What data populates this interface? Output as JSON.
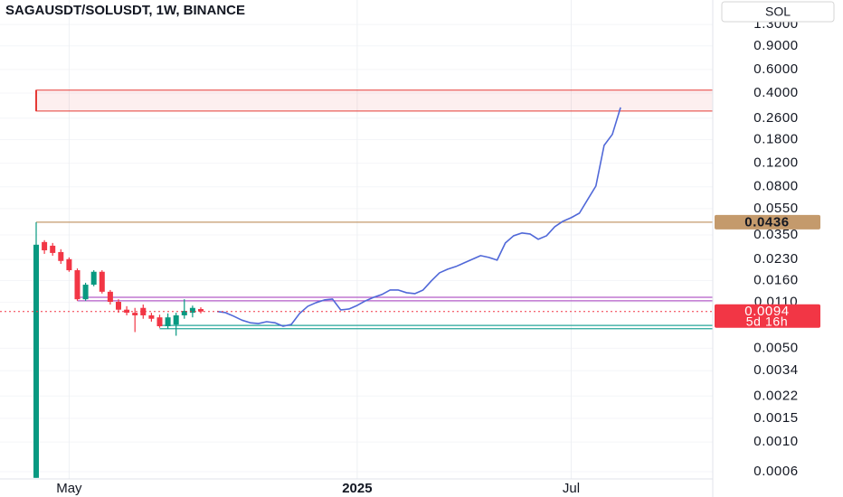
{
  "chart_data": {
    "type": "candlestick",
    "title": "SAGAUSDT/SOLUSDT, 1W, BINANCE",
    "currency": "SOL",
    "log_scale": true,
    "grid": true,
    "up_color": "#089981",
    "down_color": "#f23645",
    "categories": [
      null,
      null,
      null,
      null,
      "May",
      null,
      null,
      null,
      null,
      null,
      null,
      null,
      null,
      null,
      null,
      null,
      null,
      null,
      null,
      null,
      null,
      null,
      null,
      null,
      null,
      null,
      null,
      null,
      null,
      null,
      null,
      null,
      null,
      null,
      null,
      null,
      null,
      null,
      null,
      "2025",
      null,
      null,
      null,
      null,
      null,
      null,
      null,
      null,
      null,
      null,
      null,
      null,
      null,
      null,
      null,
      null,
      null,
      null,
      null,
      null,
      null,
      null,
      null,
      null,
      null,
      "Jul",
      null,
      null,
      null,
      null,
      null,
      null
    ],
    "ohlc": {
      "open": [
        0.00054,
        0.031,
        0.0291,
        0.0261,
        0.0231,
        0.0191,
        0.0116,
        0.0149,
        0.0186,
        0.0132,
        0.0111,
        0.0097,
        0.0092,
        0.01,
        0.0088,
        0.0085,
        0.0073,
        0.0075,
        0.0088,
        0.0092,
        0.0098,
        null,
        null,
        null,
        null,
        null,
        null,
        null,
        null,
        null,
        null,
        null,
        null,
        null,
        null,
        null,
        null,
        null,
        null,
        null,
        null,
        null,
        null,
        null,
        null,
        null,
        null,
        null,
        null,
        null,
        null,
        null,
        null,
        null,
        null,
        null,
        null,
        null,
        null,
        null,
        null,
        null,
        null,
        null,
        null,
        null,
        null,
        null,
        null,
        null,
        null,
        null
      ],
      "high": [
        0.0436,
        0.032,
        0.0305,
        0.0274,
        0.0238,
        0.0197,
        0.0154,
        0.0191,
        0.0191,
        0.0136,
        0.0116,
        0.0103,
        0.01,
        0.0106,
        0.0092,
        0.0089,
        0.0091,
        0.0092,
        0.0116,
        0.0104,
        0.0101,
        null,
        null,
        null,
        null,
        null,
        null,
        null,
        null,
        null,
        null,
        null,
        null,
        null,
        null,
        null,
        null,
        null,
        null,
        null,
        null,
        null,
        null,
        null,
        null,
        null,
        null,
        null,
        null,
        null,
        null,
        null,
        null,
        null,
        null,
        null,
        null,
        null,
        null,
        null,
        null,
        null,
        null,
        null,
        null,
        null,
        null,
        null,
        null,
        null,
        null,
        null
      ],
      "low": [
        0.00054,
        0.0253,
        0.0245,
        0.0213,
        0.0186,
        0.0113,
        0.0113,
        0.0145,
        0.0128,
        0.0106,
        0.0092,
        0.0088,
        0.0066,
        0.0083,
        0.0079,
        0.0071,
        0.007,
        0.0062,
        0.0083,
        0.0085,
        0.0091,
        null,
        null,
        null,
        null,
        null,
        null,
        null,
        null,
        null,
        null,
        null,
        null,
        null,
        null,
        null,
        null,
        null,
        null,
        null,
        null,
        null,
        null,
        null,
        null,
        null,
        null,
        null,
        null,
        null,
        null,
        null,
        null,
        null,
        null,
        null,
        null,
        null,
        null,
        null,
        null,
        null,
        null,
        null,
        null,
        null,
        null,
        null,
        null,
        null,
        null,
        null
      ],
      "close": [
        0.0296,
        0.0269,
        0.0257,
        0.0224,
        0.0191,
        0.0116,
        0.0149,
        0.0186,
        0.0132,
        0.0111,
        0.0097,
        0.0092,
        0.0088,
        0.0088,
        0.0083,
        0.0073,
        0.0085,
        0.0088,
        0.0095,
        0.01,
        0.0094,
        null,
        null,
        null,
        null,
        null,
        null,
        null,
        null,
        null,
        null,
        null,
        null,
        null,
        null,
        null,
        null,
        null,
        null,
        null,
        null,
        null,
        null,
        null,
        null,
        null,
        null,
        null,
        null,
        null,
        null,
        null,
        null,
        null,
        null,
        null,
        null,
        null,
        null,
        null,
        null,
        null,
        null,
        null,
        null,
        null,
        null,
        null,
        null,
        null,
        null,
        null
      ]
    },
    "projection": {
      "color": "#5068d8",
      "values": [
        null,
        null,
        null,
        null,
        null,
        null,
        null,
        null,
        null,
        null,
        null,
        null,
        null,
        null,
        null,
        null,
        null,
        null,
        null,
        null,
        null,
        null,
        0.0094,
        0.00922,
        0.00867,
        0.0081,
        0.00775,
        0.00764,
        0.00789,
        0.00775,
        0.0073,
        0.00753,
        0.00908,
        0.01028,
        0.01094,
        0.01146,
        0.01164,
        0.00966,
        0.00981,
        0.01044,
        0.01128,
        0.012,
        0.01258,
        0.01359,
        0.01359,
        0.01298,
        0.01277,
        0.01359,
        0.01588,
        0.01826,
        0.01944,
        0.02036,
        0.02168,
        0.02306,
        0.02454,
        0.0238,
        0.02271,
        0.0305,
        0.0345,
        0.0362,
        0.0356,
        0.0325,
        0.0345,
        0.0403,
        0.0443,
        0.0471,
        0.0509,
        0.0643,
        0.0811,
        0.163,
        0.197,
        0.313
      ]
    },
    "zones": [
      {
        "top": 0.421,
        "bottom": 0.294,
        "from": 0,
        "color": "#e53935"
      }
    ],
    "levels": [
      {
        "value": 0.0436,
        "from": 0,
        "color": "#c49a6c",
        "axis_label": true
      },
      {
        "value": 0.012,
        "from": 5,
        "color": "#b35cc7"
      },
      {
        "value": 0.0113,
        "from": 5,
        "color": "#b35cc7"
      },
      {
        "value": 0.0074,
        "from": 15,
        "color": "#26a69a"
      },
      {
        "value": 0.007,
        "from": 15,
        "color": "#26a69a"
      }
    ],
    "last_price_color": "#f23645",
    "countdown": "5d 16h",
    "ylim": [
      0.00053,
      1.98
    ],
    "yticks": [
      {
        "value": 1.3,
        "label": "1.3000"
      },
      {
        "value": 0.9,
        "label": "0.9000"
      },
      {
        "value": 0.6,
        "label": "0.6000"
      },
      {
        "value": 0.4,
        "label": "0.4000"
      },
      {
        "value": 0.26,
        "label": "0.2600"
      },
      {
        "value": 0.18,
        "label": "0.1800"
      },
      {
        "value": 0.12,
        "label": "0.1200"
      },
      {
        "value": 0.08,
        "label": "0.0800"
      },
      {
        "value": 0.055,
        "label": "0.0550"
      },
      {
        "value": 0.035,
        "label": "0.0350"
      },
      {
        "value": 0.023,
        "label": "0.0230"
      },
      {
        "value": 0.016,
        "label": "0.0160"
      },
      {
        "value": 0.011,
        "label": "0.0110"
      },
      {
        "value": 0.005,
        "label": "0.0050"
      },
      {
        "value": 0.0034,
        "label": "0.0034"
      },
      {
        "value": 0.0022,
        "label": "0.0022"
      },
      {
        "value": 0.0015,
        "label": "0.0015"
      },
      {
        "value": 0.001,
        "label": "0.0010"
      },
      {
        "value": 0.0006,
        "label": "0.0006"
      }
    ]
  }
}
